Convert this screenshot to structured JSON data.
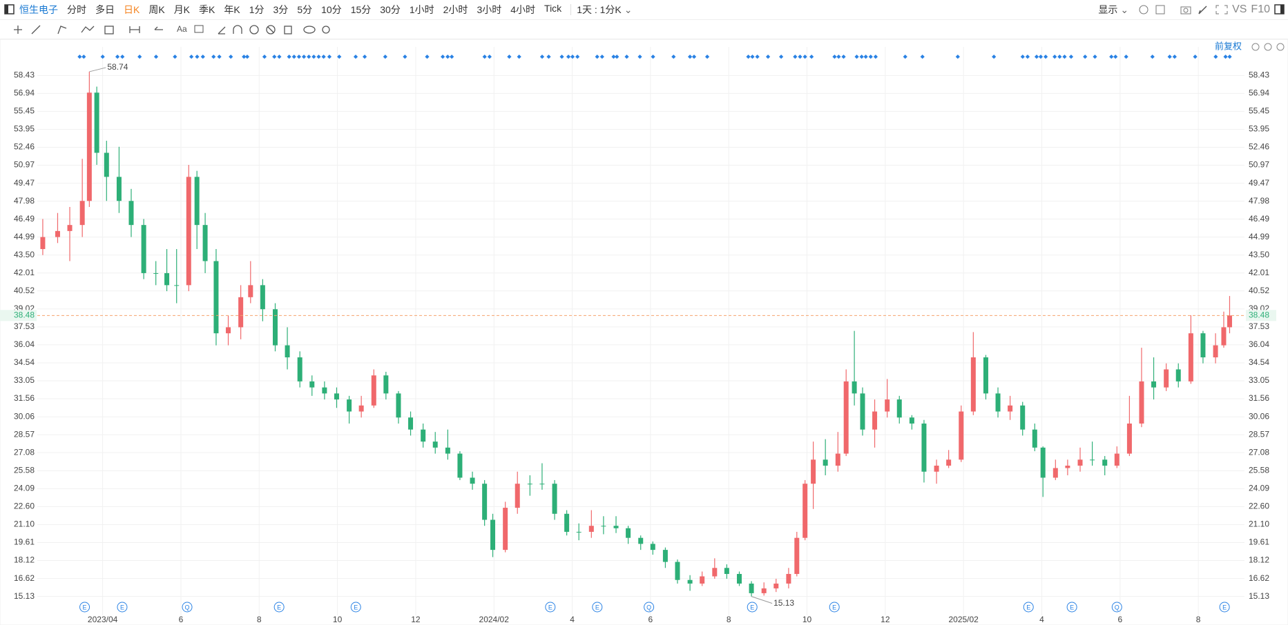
{
  "toolbar": {
    "symbol": "恒生电子",
    "periods": [
      "分时",
      "多日",
      "日K",
      "周K",
      "月K",
      "季K",
      "年K",
      "1分",
      "3分",
      "5分",
      "10分",
      "15分",
      "30分",
      "1小时",
      "2小时",
      "3小时",
      "4小时",
      "Tick"
    ],
    "active_period": 2,
    "interval": "1天 : 1分K",
    "display": "显示",
    "vs": "VS",
    "f10": "F10"
  },
  "chart_data": {
    "type": "candlestick",
    "adjust": "前复权",
    "up_color": "#f0686b",
    "down_color": "#2daf77",
    "last_price_color": "#f5a36c",
    "grid": true,
    "xlim": [
      1.33,
      32.18
    ],
    "xticks": [
      {
        "value": 3,
        "label": "2023/04"
      },
      {
        "value": 5,
        "label": "6"
      },
      {
        "value": 7,
        "label": "8"
      },
      {
        "value": 9,
        "label": "10"
      },
      {
        "value": 11,
        "label": "12"
      },
      {
        "value": 13,
        "label": "2024/02"
      },
      {
        "value": 15,
        "label": "4"
      },
      {
        "value": 17,
        "label": "6"
      },
      {
        "value": 19,
        "label": "8"
      },
      {
        "value": 21,
        "label": "10"
      },
      {
        "value": 23,
        "label": "12"
      },
      {
        "value": 25,
        "label": "2025/02"
      },
      {
        "value": 27,
        "label": "4"
      },
      {
        "value": 29,
        "label": "6"
      },
      {
        "value": 31,
        "label": "8"
      }
    ],
    "ylim": [
      13.56,
      60.8
    ],
    "yticks": [
      58.43,
      56.94,
      55.45,
      53.95,
      52.46,
      50.97,
      49.47,
      47.98,
      46.49,
      44.99,
      {
        "value": 43.5,
        "label": "43.50"
      },
      42.01,
      40.52,
      39.02,
      37.53,
      36.04,
      34.54,
      33.05,
      31.56,
      30.06,
      28.57,
      27.08,
      25.58,
      24.09,
      {
        "value": 22.6,
        "label": "22.60"
      },
      {
        "value": 21.1,
        "label": "21.10"
      },
      19.61,
      18.12,
      16.62,
      15.13
    ],
    "x": [
      1.47,
      1.85,
      2.16,
      2.48,
      2.66,
      2.85,
      3.1,
      3.42,
      3.73,
      4.05,
      4.36,
      4.64,
      4.89,
      5.2,
      5.41,
      5.62,
      5.9,
      6.21,
      6.53,
      6.78,
      7.09,
      7.41,
      7.72,
      8.04,
      8.35,
      8.67,
      8.98,
      9.3,
      9.61,
      9.93,
      10.24,
      10.56,
      10.87,
      11.19,
      11.5,
      11.82,
      12.13,
      12.45,
      12.76,
      12.97,
      13.29,
      13.6,
      13.92,
      14.23,
      14.55,
      14.86,
      15.17,
      15.49,
      15.8,
      16.12,
      16.43,
      16.75,
      17.06,
      17.38,
      17.69,
      18.01,
      18.32,
      18.64,
      18.95,
      19.27,
      19.58,
      19.9,
      20.21,
      20.53,
      20.74,
      20.95,
      21.16,
      21.47,
      21.79,
      22.0,
      22.21,
      22.42,
      22.73,
      23.05,
      23.36,
      23.68,
      23.99,
      24.31,
      24.62,
      24.94,
      25.25,
      25.57,
      25.88,
      26.19,
      26.51,
      26.82,
      27.03,
      27.35,
      27.66,
      27.98,
      28.29,
      28.61,
      28.92,
      29.24,
      29.55,
      29.86,
      30.18,
      30.49,
      30.81,
      31.12,
      31.44,
      31.65,
      31.8
    ],
    "ohlc": [
      [
        44,
        46.5,
        43.5,
        45
      ],
      [
        45,
        47,
        44.5,
        45.5
      ],
      [
        45.5,
        47.5,
        43,
        46
      ],
      [
        46,
        51.5,
        45,
        48
      ],
      [
        48,
        58.74,
        47.5,
        57
      ],
      [
        57,
        57.5,
        51,
        52
      ],
      [
        52,
        53,
        48,
        50
      ],
      [
        50,
        52.5,
        47,
        48
      ],
      [
        48,
        49,
        45,
        46
      ],
      [
        46,
        46.5,
        41.5,
        42
      ],
      [
        42,
        43,
        41,
        42
      ],
      [
        42,
        44,
        40.5,
        41
      ],
      [
        41,
        44,
        39.5,
        41
      ],
      [
        41,
        51,
        40.5,
        50
      ],
      [
        50,
        50.5,
        44,
        46
      ],
      [
        46,
        47,
        42,
        43
      ],
      [
        43,
        44,
        36,
        37
      ],
      [
        37,
        38.5,
        36,
        37.5
      ],
      [
        37.5,
        41,
        36.5,
        40
      ],
      [
        40,
        43,
        39.5,
        41
      ],
      [
        41,
        41.5,
        38,
        39
      ],
      [
        39,
        39.5,
        35.5,
        36
      ],
      [
        36,
        37.5,
        34,
        35
      ],
      [
        35,
        35.5,
        32.5,
        33
      ],
      [
        33,
        33.5,
        31.8,
        32.5
      ],
      [
        32.5,
        33,
        31.5,
        32
      ],
      [
        32,
        32.5,
        30.8,
        31.5
      ],
      [
        31.5,
        31.8,
        29.5,
        30.5
      ],
      [
        30.5,
        31.8,
        30,
        31
      ],
      [
        31,
        34,
        30.8,
        33.5
      ],
      [
        33.5,
        33.8,
        31.5,
        32
      ],
      [
        32,
        32.2,
        29.5,
        30
      ],
      [
        30,
        30.5,
        28.5,
        29
      ],
      [
        29,
        29.5,
        27.5,
        28
      ],
      [
        28,
        28.8,
        27,
        27.5
      ],
      [
        27.5,
        29,
        26.5,
        27
      ],
      [
        27,
        27.2,
        24.8,
        25
      ],
      [
        25,
        25.5,
        24,
        24.5
      ],
      [
        24.5,
        24.8,
        21,
        21.5
      ],
      [
        21.5,
        22,
        18.4,
        19
      ],
      [
        19,
        23,
        18.8,
        22.5
      ],
      [
        22.5,
        25.5,
        22,
        24.5
      ],
      [
        24.5,
        25.2,
        23.5,
        24.5
      ],
      [
        24.5,
        26.2,
        24,
        24.5
      ],
      [
        24.5,
        24.8,
        21.5,
        22
      ],
      [
        22,
        22.3,
        20.2,
        20.5
      ],
      [
        20.5,
        21.2,
        19.8,
        20.5
      ],
      [
        20.5,
        22.3,
        20,
        21
      ],
      [
        21,
        21.8,
        20.3,
        21
      ],
      [
        21,
        21.8,
        20.4,
        20.8
      ],
      [
        20.8,
        21,
        19.5,
        20
      ],
      [
        20,
        20.2,
        19,
        19.5
      ],
      [
        19.5,
        19.7,
        18.6,
        19
      ],
      [
        19,
        19.2,
        17.5,
        18
      ],
      [
        18,
        18.2,
        16.2,
        16.5
      ],
      [
        16.5,
        16.9,
        15.6,
        16.2
      ],
      [
        16.2,
        17.2,
        16,
        16.8
      ],
      [
        16.8,
        18.3,
        16.6,
        17.5
      ],
      [
        17.5,
        17.8,
        16.6,
        17
      ],
      [
        17,
        17.2,
        16,
        16.2
      ],
      [
        16.2,
        16.4,
        15.13,
        15.4
      ],
      [
        15.4,
        16.3,
        15.2,
        15.8
      ],
      [
        15.8,
        16.6,
        15.5,
        16.2
      ],
      [
        16.2,
        17.5,
        15.8,
        17
      ],
      [
        17,
        20.5,
        16.8,
        20
      ],
      [
        20,
        24.8,
        19.8,
        24.5
      ],
      [
        24.5,
        28,
        22.4,
        26.5
      ],
      [
        26.5,
        28.2,
        25.2,
        26
      ],
      [
        26,
        28.8,
        25.5,
        27
      ],
      [
        27,
        34,
        26.8,
        33
      ],
      [
        33,
        37.2,
        31,
        32
      ],
      [
        32,
        32.5,
        28.5,
        29
      ],
      [
        29,
        31.5,
        27.5,
        30.5
      ],
      [
        30.5,
        33.2,
        30,
        31.5
      ],
      [
        31.5,
        31.8,
        29.5,
        30
      ],
      [
        30,
        30.2,
        29,
        29.5
      ],
      [
        29.5,
        29.8,
        24.6,
        25.5
      ],
      [
        25.5,
        26.5,
        24.5,
        26
      ],
      [
        26,
        27.3,
        25.8,
        26.5
      ],
      [
        26.5,
        31,
        26.3,
        30.5
      ],
      [
        30.5,
        37.1,
        30.2,
        35
      ],
      [
        35,
        35.2,
        31.5,
        32
      ],
      [
        32,
        32.5,
        30,
        30.5
      ],
      [
        30.5,
        31.8,
        29.8,
        31
      ],
      [
        31,
        31.3,
        28.5,
        29
      ],
      [
        29,
        29.5,
        27.2,
        27.5
      ],
      [
        27.5,
        27.6,
        23.4,
        25
      ],
      [
        25,
        26.5,
        24.8,
        25.8
      ],
      [
        25.8,
        26.5,
        25.2,
        26
      ],
      [
        26,
        27.5,
        25.5,
        26.5
      ],
      [
        26.5,
        28,
        26,
        26.5
      ],
      [
        26.5,
        26.8,
        25.2,
        26
      ],
      [
        26,
        27.6,
        25.8,
        27
      ],
      [
        27,
        31.8,
        26.8,
        29.5
      ],
      [
        29.5,
        35.8,
        29.2,
        33
      ],
      [
        33,
        35,
        31.5,
        32.5
      ],
      [
        32.5,
        34.5,
        32.2,
        34
      ],
      [
        34,
        34.5,
        32.5,
        33
      ],
      [
        33,
        38.5,
        32.8,
        37
      ],
      [
        37,
        37.2,
        34.5,
        35
      ],
      [
        35,
        37,
        34.5,
        36
      ],
      [
        36,
        38.8,
        35.8,
        37.5
      ],
      [
        37.5,
        40.1,
        37,
        38.48
      ]
    ],
    "events": {
      "x": [
        2.54,
        3.5,
        5.16,
        7.51,
        9.47,
        14.44,
        15.64,
        16.96,
        19.6,
        21.7,
        26.66,
        27.77,
        28.92,
        31.67
      ],
      "labels": [
        "E",
        "E",
        "Q",
        "E",
        "E",
        "E",
        "E",
        "Q",
        "E",
        "E",
        "E",
        "E",
        "Q",
        "E"
      ]
    }
  }
}
